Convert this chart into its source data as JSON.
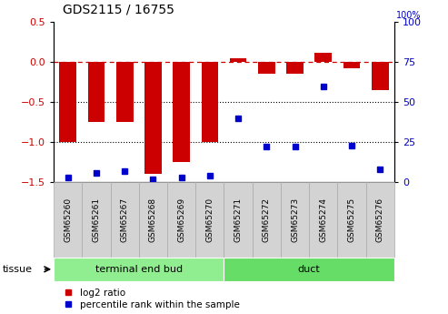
{
  "title": "GDS2115 / 16755",
  "categories": [
    "GSM65260",
    "GSM65261",
    "GSM65267",
    "GSM65268",
    "GSM65269",
    "GSM65270",
    "GSM65271",
    "GSM65272",
    "GSM65273",
    "GSM65274",
    "GSM65275",
    "GSM65276"
  ],
  "log2_ratio": [
    -1.0,
    -0.75,
    -0.75,
    -1.4,
    -1.25,
    -1.0,
    0.05,
    -0.15,
    -0.15,
    0.12,
    -0.08,
    -0.35
  ],
  "percentile_rank": [
    3,
    6,
    7,
    2,
    3,
    4,
    40,
    22,
    22,
    60,
    23,
    8
  ],
  "tissue_groups": [
    {
      "label": "terminal end bud",
      "start": 0,
      "end": 6,
      "color": "#90ee90"
    },
    {
      "label": "duct",
      "start": 6,
      "end": 12,
      "color": "#66dd66"
    }
  ],
  "bar_color": "#cc0000",
  "dot_color": "#0000cc",
  "ylim_left": [
    -1.5,
    0.5
  ],
  "ylim_right": [
    0,
    100
  ],
  "yticks_left": [
    -1.5,
    -1.0,
    -0.5,
    0,
    0.5
  ],
  "yticks_right": [
    0,
    25,
    50,
    75,
    100
  ],
  "hline_y": 0,
  "dotted_lines": [
    -0.5,
    -1.0
  ],
  "tissue_label": "tissue",
  "legend_items": [
    {
      "label": "log2 ratio",
      "color": "#cc0000"
    },
    {
      "label": "percentile rank within the sample",
      "color": "#0000cc"
    }
  ],
  "bar_width": 0.6,
  "sample_box_color": "#d3d3d3",
  "sample_box_edge_color": "#aaaaaa",
  "right_axis_label": "100%"
}
